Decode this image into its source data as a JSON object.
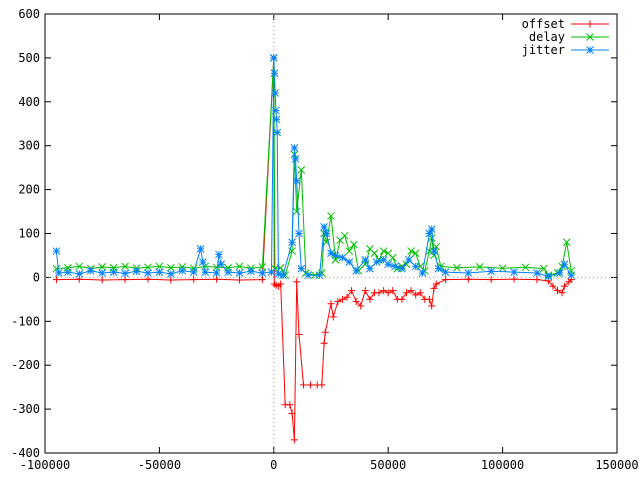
{
  "chart_data": {
    "type": "line",
    "title": "",
    "xlabel": "",
    "ylabel": "",
    "xlim": [
      -100000,
      150000
    ],
    "ylim": [
      -400,
      600
    ],
    "x_ticks": [
      -100000,
      -50000,
      0,
      50000,
      100000,
      150000
    ],
    "y_ticks": [
      -400,
      -300,
      -200,
      -100,
      0,
      100,
      200,
      300,
      400,
      500,
      600
    ],
    "x_tick_labels": [
      "-100000",
      "-50000",
      "0",
      "50000",
      "100000",
      "150000"
    ],
    "y_tick_labels": [
      "-400",
      "-300",
      "-200",
      "-100",
      "0",
      "100",
      "200",
      "300",
      "400",
      "500",
      "600"
    ],
    "zero_axes": true,
    "grid": false,
    "legend_position": "top-right",
    "series": [
      {
        "name": "offset",
        "color": "#ff0000",
        "marker": "plus",
        "points": [
          [
            -95000,
            -5
          ],
          [
            -85000,
            -4
          ],
          [
            -75000,
            -6
          ],
          [
            -65000,
            -5
          ],
          [
            -55000,
            -4
          ],
          [
            -45000,
            -6
          ],
          [
            -35000,
            -5
          ],
          [
            -25000,
            -4
          ],
          [
            -15000,
            -6
          ],
          [
            -5000,
            -5
          ],
          [
            0,
            500
          ],
          [
            200,
            -15
          ],
          [
            1000,
            -18
          ],
          [
            2000,
            -20
          ],
          [
            3000,
            -15
          ],
          [
            5000,
            -290
          ],
          [
            7000,
            -290
          ],
          [
            8000,
            -310
          ],
          [
            9000,
            -370
          ],
          [
            10000,
            -10
          ],
          [
            11000,
            -130
          ],
          [
            13000,
            -245
          ],
          [
            16000,
            -245
          ],
          [
            19000,
            -245
          ],
          [
            21000,
            -245
          ],
          [
            22000,
            -150
          ],
          [
            22500,
            -125
          ],
          [
            25000,
            -60
          ],
          [
            26000,
            -90
          ],
          [
            28000,
            -55
          ],
          [
            30000,
            -50
          ],
          [
            32000,
            -45
          ],
          [
            34000,
            -30
          ],
          [
            36000,
            -55
          ],
          [
            38000,
            -65
          ],
          [
            40000,
            -30
          ],
          [
            42000,
            -50
          ],
          [
            44000,
            -35
          ],
          [
            46000,
            -35
          ],
          [
            48000,
            -30
          ],
          [
            50000,
            -35
          ],
          [
            52000,
            -30
          ],
          [
            54000,
            -50
          ],
          [
            56000,
            -50
          ],
          [
            58000,
            -35
          ],
          [
            60000,
            -30
          ],
          [
            62000,
            -40
          ],
          [
            64000,
            -35
          ],
          [
            66000,
            -50
          ],
          [
            68000,
            -50
          ],
          [
            69000,
            -65
          ],
          [
            70000,
            -25
          ],
          [
            71000,
            -15
          ],
          [
            75000,
            -5
          ],
          [
            85000,
            -4
          ],
          [
            95000,
            -5
          ],
          [
            105000,
            -4
          ],
          [
            115000,
            -5
          ],
          [
            120000,
            -8
          ],
          [
            122000,
            -20
          ],
          [
            124000,
            -30
          ],
          [
            126000,
            -35
          ],
          [
            127000,
            -20
          ],
          [
            129000,
            -10
          ],
          [
            130000,
            -5
          ]
        ]
      },
      {
        "name": "delay",
        "color": "#00c000",
        "marker": "cross",
        "points": [
          [
            -95000,
            20
          ],
          [
            -90000,
            22
          ],
          [
            -85000,
            25
          ],
          [
            -80000,
            20
          ],
          [
            -75000,
            24
          ],
          [
            -70000,
            22
          ],
          [
            -65000,
            25
          ],
          [
            -60000,
            21
          ],
          [
            -55000,
            23
          ],
          [
            -50000,
            25
          ],
          [
            -45000,
            22
          ],
          [
            -40000,
            24
          ],
          [
            -35000,
            21
          ],
          [
            -30000,
            25
          ],
          [
            -25000,
            23
          ],
          [
            -20000,
            22
          ],
          [
            -15000,
            25
          ],
          [
            -10000,
            21
          ],
          [
            -5000,
            24
          ],
          [
            0,
            500
          ],
          [
            500,
            20
          ],
          [
            3000,
            22
          ],
          [
            5000,
            5
          ],
          [
            8000,
            60
          ],
          [
            9000,
            280
          ],
          [
            10000,
            150
          ],
          [
            12000,
            245
          ],
          [
            14000,
            10
          ],
          [
            18000,
            5
          ],
          [
            21000,
            10
          ],
          [
            22000,
            100
          ],
          [
            23000,
            80
          ],
          [
            25000,
            140
          ],
          [
            27000,
            40
          ],
          [
            29000,
            85
          ],
          [
            31000,
            95
          ],
          [
            33000,
            60
          ],
          [
            35000,
            75
          ],
          [
            37000,
            15
          ],
          [
            40000,
            30
          ],
          [
            42000,
            65
          ],
          [
            44000,
            55
          ],
          [
            46000,
            40
          ],
          [
            48000,
            60
          ],
          [
            50000,
            55
          ],
          [
            52000,
            45
          ],
          [
            54000,
            20
          ],
          [
            56000,
            25
          ],
          [
            58000,
            30
          ],
          [
            60000,
            60
          ],
          [
            62000,
            55
          ],
          [
            64000,
            25
          ],
          [
            66000,
            15
          ],
          [
            68000,
            60
          ],
          [
            69000,
            90
          ],
          [
            70000,
            50
          ],
          [
            71000,
            70
          ],
          [
            73000,
            25
          ],
          [
            80000,
            22
          ],
          [
            90000,
            24
          ],
          [
            100000,
            21
          ],
          [
            110000,
            23
          ],
          [
            118000,
            20
          ],
          [
            120000,
            5
          ],
          [
            124000,
            10
          ],
          [
            126000,
            25
          ],
          [
            128000,
            80
          ],
          [
            130000,
            15
          ]
        ]
      },
      {
        "name": "jitter",
        "color": "#0080ff",
        "marker": "star",
        "points": [
          [
            -95000,
            60
          ],
          [
            -94000,
            10
          ],
          [
            -90000,
            12
          ],
          [
            -85000,
            8
          ],
          [
            -80000,
            15
          ],
          [
            -75000,
            10
          ],
          [
            -70000,
            12
          ],
          [
            -65000,
            9
          ],
          [
            -60000,
            14
          ],
          [
            -55000,
            10
          ],
          [
            -50000,
            12
          ],
          [
            -45000,
            8
          ],
          [
            -40000,
            15
          ],
          [
            -35000,
            12
          ],
          [
            -32000,
            65
          ],
          [
            -31000,
            35
          ],
          [
            -30000,
            12
          ],
          [
            -25000,
            10
          ],
          [
            -24000,
            52
          ],
          [
            -23000,
            30
          ],
          [
            -20000,
            12
          ],
          [
            -15000,
            10
          ],
          [
            -10000,
            14
          ],
          [
            -5000,
            10
          ],
          [
            -1000,
            12
          ],
          [
            0,
            500
          ],
          [
            300,
            465
          ],
          [
            600,
            420
          ],
          [
            900,
            380
          ],
          [
            1200,
            360
          ],
          [
            1500,
            330
          ],
          [
            2000,
            8
          ],
          [
            4000,
            5
          ],
          [
            8000,
            80
          ],
          [
            9000,
            295
          ],
          [
            9500,
            270
          ],
          [
            10000,
            220
          ],
          [
            11000,
            100
          ],
          [
            12000,
            20
          ],
          [
            15000,
            5
          ],
          [
            20000,
            5
          ],
          [
            22000,
            115
          ],
          [
            23000,
            100
          ],
          [
            25000,
            55
          ],
          [
            27000,
            50
          ],
          [
            30000,
            45
          ],
          [
            33000,
            35
          ],
          [
            36000,
            15
          ],
          [
            40000,
            40
          ],
          [
            42000,
            20
          ],
          [
            45000,
            35
          ],
          [
            48000,
            40
          ],
          [
            50000,
            30
          ],
          [
            53000,
            25
          ],
          [
            56000,
            20
          ],
          [
            59000,
            40
          ],
          [
            62000,
            25
          ],
          [
            65000,
            10
          ],
          [
            68000,
            100
          ],
          [
            69000,
            110
          ],
          [
            70000,
            60
          ],
          [
            72000,
            20
          ],
          [
            75000,
            12
          ],
          [
            85000,
            10
          ],
          [
            95000,
            14
          ],
          [
            105000,
            12
          ],
          [
            115000,
            10
          ],
          [
            120000,
            2
          ],
          [
            125000,
            10
          ],
          [
            127000,
            30
          ],
          [
            130000,
            5
          ]
        ]
      }
    ]
  }
}
